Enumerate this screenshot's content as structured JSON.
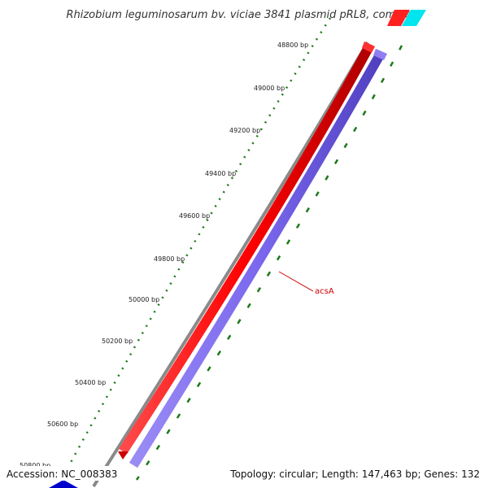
{
  "title": "Rhizobium leguminosarum bv. viciae 3841 plasmid pRL8, comple...",
  "scale": {
    "unit": "bp",
    "labels": [
      "48800 bp",
      "49000 bp",
      "49200 bp",
      "49400 bp",
      "49600 bp",
      "49800 bp",
      "50000 bp",
      "50200 bp",
      "50400 bp",
      "50600 bp",
      "50800 bp"
    ]
  },
  "features": [
    {
      "name": "acsA",
      "color": "#ff0000",
      "strand": "forward"
    },
    {
      "name": "",
      "color": "#7b68ee",
      "strand": "reverse"
    }
  ],
  "colors": {
    "backbone": "#808080",
    "forward_gene": "#ff0000",
    "reverse_gene": "#7b68ee",
    "ticks": "#1a7a1a",
    "label": "#cc0000",
    "corner_cyan": "#00e5ee",
    "corner_blue": "#0000cc"
  },
  "footer": {
    "accession": "Accession: NC_008383",
    "summary": "Topology: circular; Length: 147,463 bp; Genes: 132"
  }
}
